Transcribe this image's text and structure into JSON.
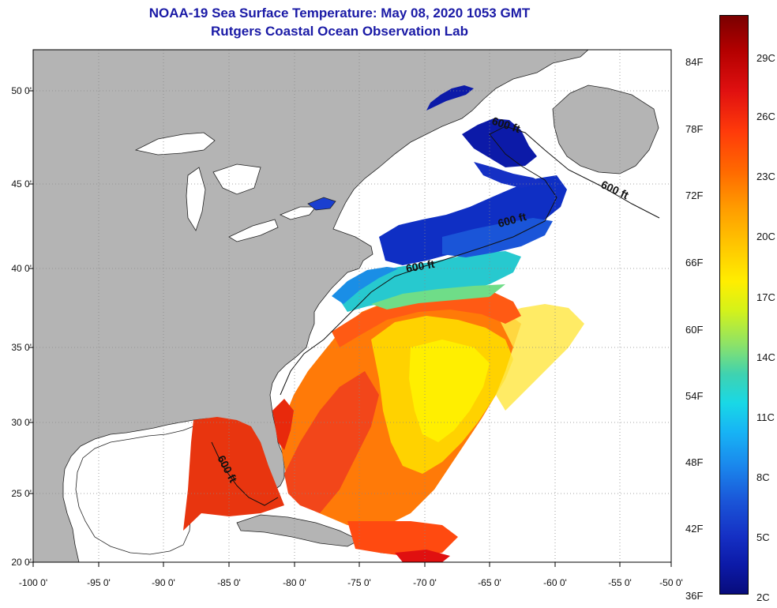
{
  "header": {
    "title": "NOAA-19 Sea Surface Temperature:  May 08, 2020 1053 GMT",
    "subtitle": "Rutgers Coastal Ocean Observation Lab"
  },
  "map": {
    "lat_labels": [
      "50 0'",
      "45 0'",
      "40 0'",
      "35 0'",
      "30 0'",
      "25 0'",
      "20 0'"
    ],
    "lon_labels": [
      "-100 0'",
      "-95 0'",
      "-90 0'",
      "-85 0'",
      "-80 0'",
      "-75 0'",
      "-70 0'",
      "-65 0'",
      "-60 0'",
      "-55 0'",
      "-50 0'"
    ],
    "contour_label": "600 ft",
    "colors": {
      "land": "#b4b4b4",
      "lakes": "#ffffff",
      "no_data": "#ffffff",
      "grid": "#888888"
    }
  },
  "colorbar": {
    "f_labels": [
      "84F",
      "78F",
      "72F",
      "66F",
      "60F",
      "54F",
      "48F",
      "42F",
      "36F"
    ],
    "c_labels": [
      "29C",
      "26C",
      "23C",
      "20C",
      "17C",
      "14C",
      "11C",
      "8C",
      "5C",
      "2C"
    ],
    "range_f": [
      36,
      87
    ],
    "range_c": [
      2,
      30.5
    ]
  }
}
